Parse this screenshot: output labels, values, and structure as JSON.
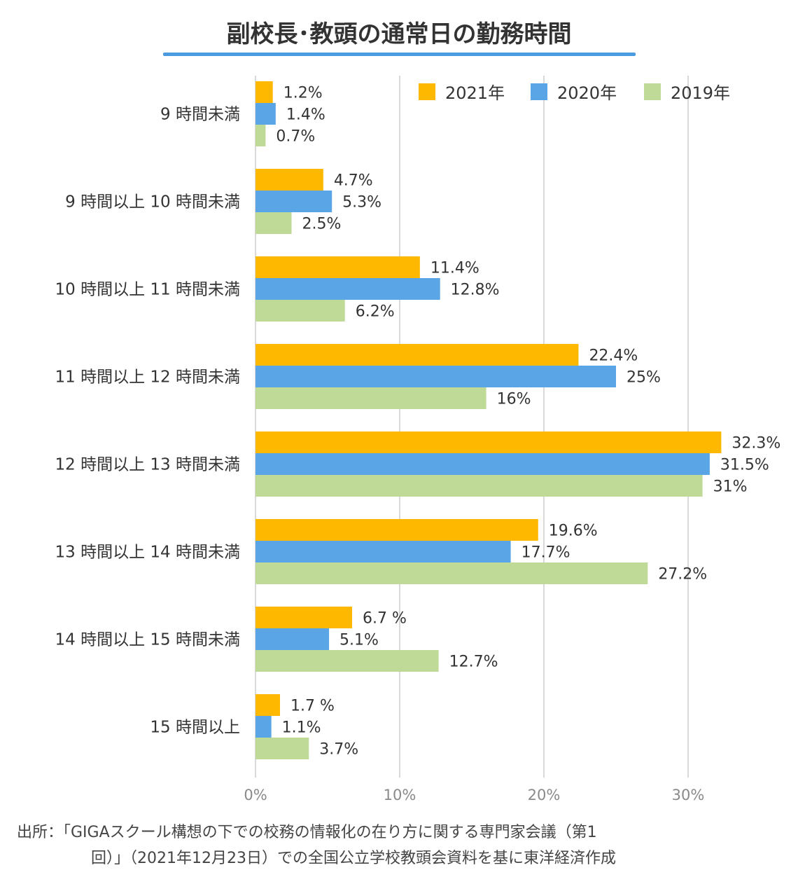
{
  "chart_data": {
    "type": "bar",
    "orientation": "horizontal",
    "title": "副校長･教頭の通常日の勤務時間",
    "categories": [
      "9 時間未満",
      "9 時間以上 10 時間未満",
      "10 時間以上 11 時間未満",
      "11 時間以上 12 時間未満",
      "12 時間以上 13 時間未満",
      "13 時間以上 14 時間未満",
      "14 時間以上 15 時間未満",
      "15 時間以上"
    ],
    "series": [
      {
        "name": "2021年",
        "color": "#FFB800",
        "values": [
          1.2,
          4.7,
          11.4,
          22.4,
          32.3,
          19.6,
          6.7,
          1.7
        ],
        "labels": [
          "1.2%",
          "4.7%",
          "11.4%",
          "22.4%",
          "32.3%",
          "19.6%",
          "6.7 %",
          "1.7 %"
        ]
      },
      {
        "name": "2020年",
        "color": "#5AA5E6",
        "values": [
          1.4,
          5.3,
          12.8,
          25,
          31.5,
          17.7,
          5.1,
          1.1
        ],
        "labels": [
          "1.4%",
          "5.3%",
          "12.8%",
          "25%",
          "31.5%",
          "17.7%",
          "5.1%",
          "1.1%"
        ]
      },
      {
        "name": "2019年",
        "color": "#BFDA97",
        "values": [
          0.7,
          2.5,
          6.2,
          16,
          31,
          27.2,
          12.7,
          3.7
        ],
        "labels": [
          "0.7%",
          "2.5%",
          "6.2%",
          "16%",
          "31%",
          "27.2%",
          "12.7%",
          "3.7%"
        ]
      }
    ],
    "xlim": [
      0,
      35
    ],
    "xticks": [
      0,
      10,
      20,
      30
    ],
    "xtick_labels": [
      "0%",
      "10%",
      "20%",
      "30%"
    ],
    "grid": true,
    "legend_position": "top-right",
    "title_underline_color": "#4A9BE0",
    "gridline_color": "#D9D9D9"
  },
  "source": {
    "line1": "出所：｢GIGAスクール構想の下での校務の情報化の在り方に関する専門家会議（第1",
    "line2": "回）｣（2021年12月23日）での全国公立学校教頭会資料を基に東洋経済作成"
  }
}
